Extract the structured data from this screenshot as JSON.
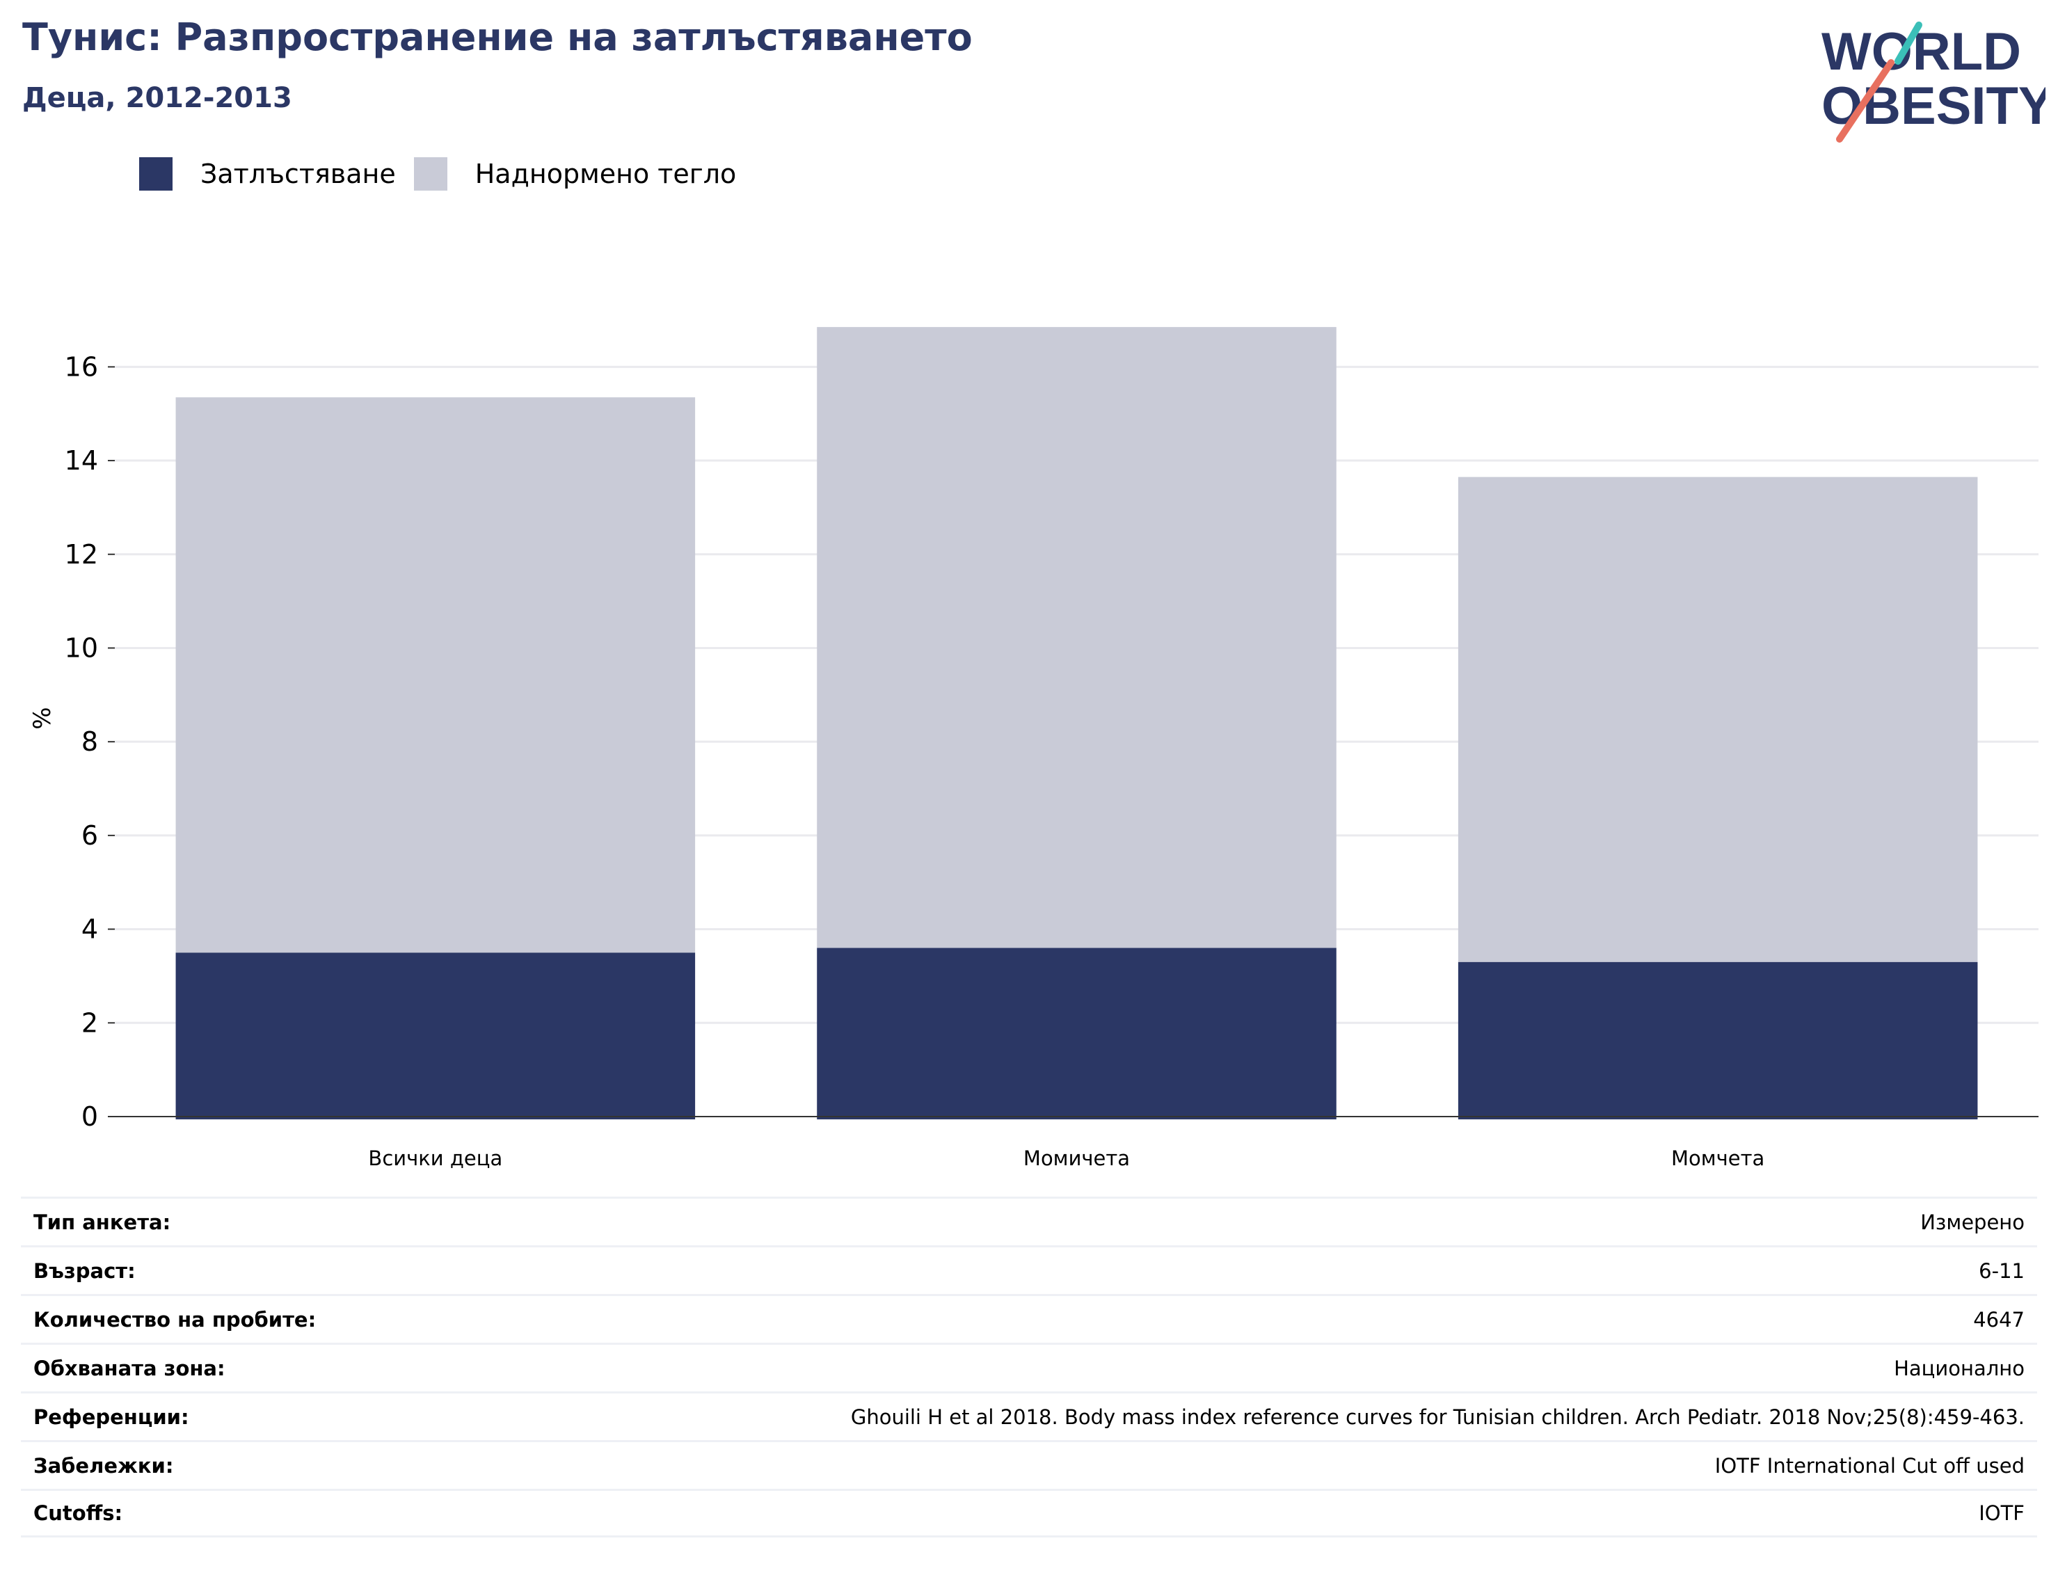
{
  "title": "Тунис: Разпространение на затлъстяването",
  "subtitle": "Деца, 2012-2013",
  "logo": {
    "line1": "WORLD",
    "line2": "OBESITY"
  },
  "colors": {
    "obesity": "#2b3765",
    "overweight": "#c9cbd7",
    "title": "#2b3765",
    "logo_teal": "#3bbfb8",
    "logo_coral": "#e8705f"
  },
  "legend": [
    {
      "label": "Затлъстяване",
      "color": "#2b3765"
    },
    {
      "label": "Наднормено тегло",
      "color": "#c9cbd7"
    }
  ],
  "chart_data": {
    "type": "bar",
    "stacked": true,
    "categories": [
      "Всички деца",
      "Момичета",
      "Момчета"
    ],
    "series": [
      {
        "name": "Затлъстяване",
        "values": [
          3.5,
          3.6,
          3.3
        ]
      },
      {
        "name": "Наднормено тегло",
        "values": [
          11.85,
          13.25,
          10.35
        ]
      }
    ],
    "ylabel": "%",
    "ylim": [
      0,
      17
    ],
    "yticks": [
      0,
      2,
      4,
      6,
      8,
      10,
      12,
      14,
      16
    ],
    "grid": true
  },
  "info": [
    {
      "key": "Тип анкета:",
      "value": "Измерено"
    },
    {
      "key": "Възраст:",
      "value": "6-11"
    },
    {
      "key": "Количество на пробите:",
      "value": "4647"
    },
    {
      "key": "Обхваната зона:",
      "value": "Национално"
    },
    {
      "key": "Референции:",
      "value": "Ghouili H et al 2018. Body mass index reference curves for Tunisian children. Arch Pediatr. 2018 Nov;25(8):459-463."
    },
    {
      "key": "Забележки:",
      "value": "IOTF International Cut off used"
    },
    {
      "key": "Cutoffs:",
      "value": "IOTF"
    }
  ]
}
